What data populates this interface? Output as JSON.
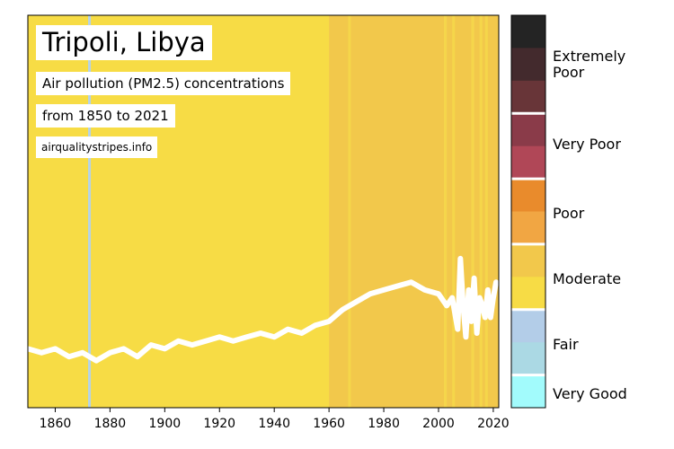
{
  "chart_data": {
    "type": "heatmap",
    "title": "Tripoli, Libya",
    "subtitle_line1": "Air pollution (PM2.5) concentrations",
    "subtitle_line2": "from 1850 to 2021",
    "source": "airqualitystripes.info",
    "xlim": [
      1850,
      2022
    ],
    "x_ticks": [
      1860,
      1880,
      1900,
      1920,
      1940,
      1960,
      1980,
      2000,
      2020
    ],
    "stripes": [
      {
        "from": 1850,
        "to": 1872,
        "category": "Moderate",
        "color": "#f7dc45"
      },
      {
        "from": 1872,
        "to": 1873,
        "category": "Fair",
        "color": "#b6d3e6"
      },
      {
        "from": 1873,
        "to": 1960,
        "category": "Moderate",
        "color": "#f7dc45"
      },
      {
        "from": 1960,
        "to": 1967,
        "category": "Moderate",
        "color": "#f2c84b"
      },
      {
        "from": 1967,
        "to": 1968,
        "category": "Moderate",
        "color": "#f5d64a"
      },
      {
        "from": 1968,
        "to": 2002,
        "category": "Moderate",
        "color": "#f2c84b"
      },
      {
        "from": 2002,
        "to": 2003,
        "category": "Moderate",
        "color": "#f5d64a"
      },
      {
        "from": 2003,
        "to": 2005,
        "category": "Moderate",
        "color": "#f2c84b"
      },
      {
        "from": 2005,
        "to": 2006,
        "category": "Moderate",
        "color": "#f5d64a"
      },
      {
        "from": 2006,
        "to": 2012,
        "category": "Moderate",
        "color": "#f2c84b"
      },
      {
        "from": 2012,
        "to": 2013,
        "category": "Moderate",
        "color": "#f5d64a"
      },
      {
        "from": 2013,
        "to": 2015,
        "category": "Moderate",
        "color": "#f2c84b"
      },
      {
        "from": 2015,
        "to": 2016,
        "category": "Moderate",
        "color": "#f5d64a"
      },
      {
        "from": 2016,
        "to": 2017,
        "category": "Moderate",
        "color": "#f2c84b"
      },
      {
        "from": 2017,
        "to": 2018,
        "category": "Moderate",
        "color": "#f5d64a"
      },
      {
        "from": 2018,
        "to": 2022,
        "category": "Moderate",
        "color": "#f2c84b"
      }
    ],
    "line": {
      "color": "#ffffff",
      "level_scale": [
        0,
        1
      ],
      "x": [
        1850,
        1855,
        1860,
        1865,
        1870,
        1875,
        1880,
        1885,
        1890,
        1895,
        1900,
        1905,
        1910,
        1915,
        1920,
        1925,
        1930,
        1935,
        1940,
        1945,
        1950,
        1955,
        1960,
        1965,
        1970,
        1975,
        1980,
        1985,
        1990,
        1995,
        2000,
        2003,
        2005,
        2007,
        2008,
        2009,
        2010,
        2011,
        2012,
        2013,
        2014,
        2015,
        2016,
        2017,
        2018,
        2019,
        2020,
        2021
      ],
      "y": [
        0.15,
        0.14,
        0.15,
        0.13,
        0.14,
        0.12,
        0.14,
        0.15,
        0.13,
        0.16,
        0.15,
        0.17,
        0.16,
        0.17,
        0.18,
        0.17,
        0.18,
        0.19,
        0.18,
        0.2,
        0.19,
        0.21,
        0.22,
        0.25,
        0.27,
        0.29,
        0.3,
        0.31,
        0.32,
        0.3,
        0.29,
        0.26,
        0.28,
        0.2,
        0.38,
        0.26,
        0.18,
        0.3,
        0.22,
        0.33,
        0.19,
        0.28,
        0.26,
        0.23,
        0.3,
        0.23,
        0.28,
        0.32
      ]
    },
    "legend": {
      "bands": [
        {
          "category": "Extremely Poor",
          "colors": [
            "#242424",
            "#432a2d",
            "#683538"
          ]
        },
        {
          "category": "Very Poor",
          "colors": [
            "#8a3b49",
            "#b04757"
          ]
        },
        {
          "category": "Poor",
          "colors": [
            "#e98b2c",
            "#f1a643"
          ]
        },
        {
          "category": "Moderate",
          "colors": [
            "#f2c84b",
            "#f7dc45"
          ]
        },
        {
          "category": "Fair",
          "colors": [
            "#b3cde8",
            "#abd9e4"
          ]
        },
        {
          "category": "Very Good",
          "colors": [
            "#a2fbfc"
          ]
        }
      ],
      "labels": [
        "Extremely\nPoor",
        "Very Poor",
        "Poor",
        "Moderate",
        "Fair",
        "Very Good"
      ]
    }
  }
}
